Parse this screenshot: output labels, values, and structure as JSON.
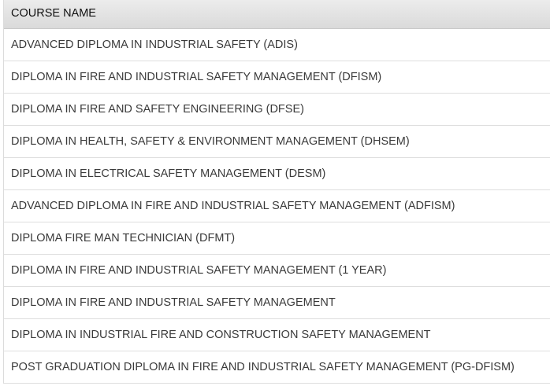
{
  "table": {
    "header": "COURSE NAME",
    "rows": [
      "ADVANCED DIPLOMA IN INDUSTRIAL SAFETY (ADIS)",
      "DIPLOMA IN FIRE AND INDUSTRIAL SAFETY MANAGEMENT (DFISM)",
      "DIPLOMA IN FIRE AND SAFETY ENGINEERING (DFSE)",
      "DIPLOMA IN HEALTH, SAFETY & ENVIRONMENT MANAGEMENT (DHSEM)",
      "DIPLOMA IN ELECTRICAL SAFETY MANAGEMENT (DESM)",
      "ADVANCED DIPLOMA IN FIRE AND INDUSTRIAL SAFETY MANAGEMENT (ADFISM)",
      "DIPLOMA FIRE MAN TECHNICIAN (DFMT)",
      "DIPLOMA IN FIRE AND INDUSTRIAL SAFETY MANAGEMENT (1 YEAR)",
      "DIPLOMA IN FIRE AND INDUSTRIAL SAFETY MANAGEMENT",
      "DIPLOMA IN INDUSTRIAL FIRE AND CONSTRUCTION SAFETY MANAGEMENT",
      "POST GRADUATION DIPLOMA IN FIRE AND INDUSTRIAL SAFETY MANAGEMENT (PG-DFISM)"
    ]
  }
}
